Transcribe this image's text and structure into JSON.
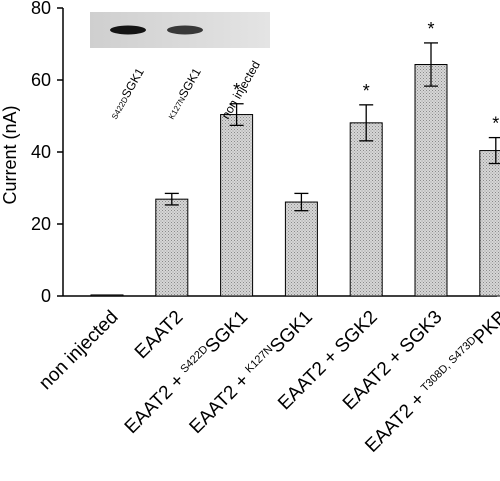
{
  "chart_data": {
    "type": "bar",
    "categories": [
      {
        "prefix": "",
        "sup": "",
        "main": "non injected"
      },
      {
        "prefix": "",
        "sup": "",
        "main": "EAAT2"
      },
      {
        "prefix": "EAAT2 + ",
        "sup": "S422D",
        "main": "SGK1"
      },
      {
        "prefix": "EAAT2 + ",
        "sup": "K127N",
        "main": "SGK1"
      },
      {
        "prefix": "EAAT2 + SGK2",
        "sup": "",
        "main": ""
      },
      {
        "prefix": "EAAT2 + SGK3",
        "sup": "",
        "main": ""
      },
      {
        "prefix": "EAAT2 + ",
        "sup": "T308D, S473D",
        "main": "PKB"
      }
    ],
    "values": [
      0.3,
      26.9,
      50.4,
      26.1,
      48.1,
      64.3,
      40.4
    ],
    "errors": [
      0,
      1.6,
      3.0,
      2.4,
      5.0,
      6.0,
      3.6
    ],
    "significant": [
      false,
      false,
      true,
      false,
      true,
      true,
      true
    ],
    "ylabel": "Current (nA)",
    "ylim": [
      0,
      80
    ],
    "yticks": [
      0,
      20,
      40,
      60,
      80
    ],
    "significance_marker": "*",
    "bar_fill": "#c9c9c9",
    "inset_blot": {
      "lanes": [
        {
          "sup": "S422D",
          "main": "SGK1",
          "band_intensity": 1.0
        },
        {
          "sup": "K127N",
          "main": "SGK1",
          "band_intensity": 0.85
        },
        {
          "sup": "",
          "main": "non injected",
          "band_intensity": 0.0
        }
      ]
    }
  }
}
